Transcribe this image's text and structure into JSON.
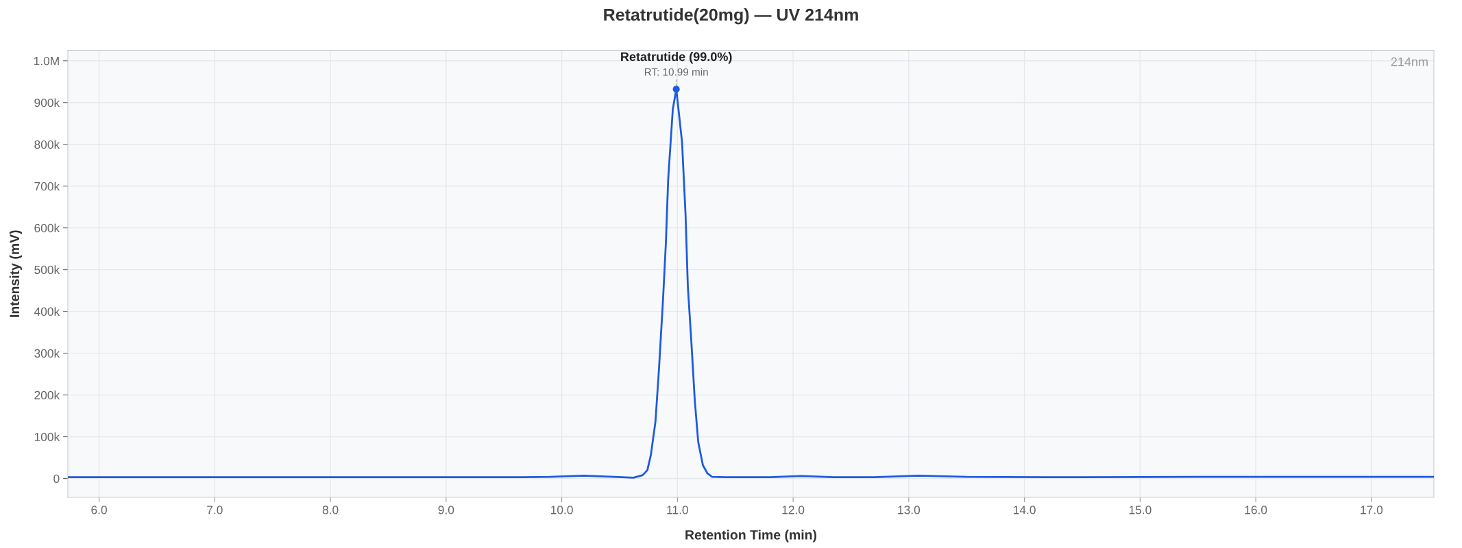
{
  "chart_data": {
    "type": "line",
    "title": "Retatrutide(20mg) — UV 214nm",
    "xlabel": "Retention Time (min)",
    "ylabel": "Intensity (mV)",
    "series": [
      {
        "color": "#1f5ae0",
        "x": [
          5.73,
          7.0,
          8.0,
          9.0,
          9.6,
          9.9,
          10.19,
          10.45,
          10.62,
          10.7,
          10.74,
          10.77,
          10.81,
          10.84,
          10.875,
          10.9,
          10.92,
          10.96,
          10.99,
          11.04,
          11.07,
          11.09,
          11.12,
          11.15,
          11.18,
          11.22,
          11.26,
          11.3,
          11.42,
          11.8,
          12.07,
          12.35,
          12.7,
          13.08,
          13.5,
          14.5,
          15.5,
          16.5,
          17.54
        ],
        "values": [
          3000,
          3000,
          3000,
          3000,
          3000,
          4000,
          7000,
          4000,
          2000,
          8000,
          20000,
          56000,
          136000,
          260000,
          426000,
          563000,
          716000,
          884000,
          932000,
          805000,
          633000,
          460000,
          329000,
          187000,
          87000,
          32000,
          12000,
          4000,
          3000,
          3000,
          6000,
          3000,
          3000,
          7000,
          4000,
          3000,
          4000,
          4000,
          4000
        ]
      },
      {
        "type": "scatter",
        "color": "#1f5ae0",
        "x": [
          10.99
        ],
        "values": [
          932000
        ]
      }
    ],
    "xlim": [
      5.73,
      17.54
    ],
    "ylim": [
      -45000,
      1025000
    ],
    "xticks": [
      {
        "value": 6,
        "label": "6.0"
      },
      {
        "value": 7,
        "label": "7.0"
      },
      {
        "value": 8,
        "label": "8.0"
      },
      {
        "value": 9,
        "label": "9.0"
      },
      {
        "value": 10,
        "label": "10.0"
      },
      {
        "value": 11,
        "label": "11.0"
      },
      {
        "value": 12,
        "label": "12.0"
      },
      {
        "value": 13,
        "label": "13.0"
      },
      {
        "value": 14,
        "label": "14.0"
      },
      {
        "value": 15,
        "label": "15.0"
      },
      {
        "value": 16,
        "label": "16.0"
      },
      {
        "value": 17,
        "label": "17.0"
      }
    ],
    "yticks": [
      0,
      {
        "value": 100000,
        "label": "100k"
      },
      {
        "value": 200000,
        "label": "200k"
      },
      {
        "value": 300000,
        "label": "300k"
      },
      {
        "value": 400000,
        "label": "400k"
      },
      {
        "value": 500000,
        "label": "500k"
      },
      {
        "value": 600000,
        "label": "600k"
      },
      {
        "value": 700000,
        "label": "700k"
      },
      {
        "value": 800000,
        "label": "800k"
      },
      {
        "value": 900000,
        "label": "900k"
      },
      {
        "value": 1000000,
        "label": "1.0M"
      }
    ],
    "annotations": [
      {
        "text": "Retatrutide (99.0%)",
        "x": 10.99,
        "y": 932000
      },
      {
        "text": "RT: 10.99 min",
        "x": 10.99,
        "y": 932000
      },
      "214nm"
    ],
    "grid": true,
    "legend": false
  }
}
